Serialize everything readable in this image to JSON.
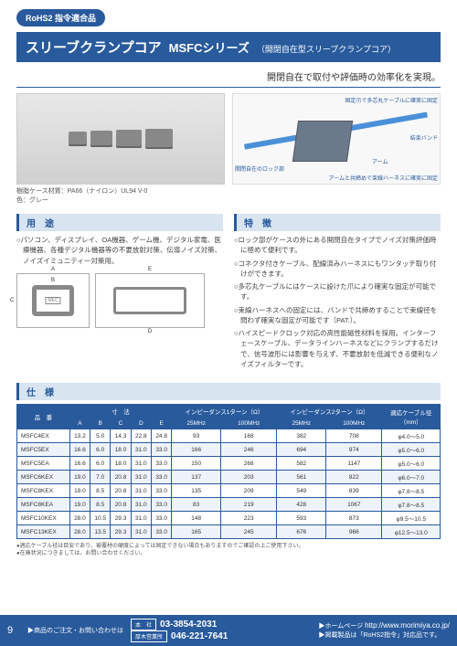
{
  "badge": "RoHS2 指令適合品",
  "title": {
    "main": "スリーブクランプコア",
    "sub": "MSFCシリーズ",
    "note": "（開閉自在型スリーブクランプコア）"
  },
  "tagline": "開閉自在で取付や評価時の効率化を実現。",
  "photoCaption": "樹脂ケース材質：PA66（ナイロン）UL94 V-0\n色：グレー",
  "iso": {
    "core": "開閉自在のロック部",
    "arm": "アーム",
    "band": "結束バンド",
    "fix1": "固定爪で多芯丸ケーブルに確実に固定",
    "fix2": "アームと共締めで束線ハーネスに確実に固定"
  },
  "use": {
    "head": "用　途",
    "text": "○パソコン、ディスプレイ、OA機器、ゲーム機、デジタル家電、医療機器、各種デジタル機器等の不要放射対策、伝導ノイズ対策、ノイズイミュニティー対策用。"
  },
  "feat": {
    "head": "特　徴",
    "items": [
      "○ロック部がケースの外にある開閉自在タイプでノイズ対策評価時に極めて便利です。",
      "○コネクタ付きケーブル、配線済みハーネスにもワンタッチ取り付けができます。",
      "○多芯丸ケーブルにはケースに設けた爪により確実な固定が可能です。",
      "○束線ハーネスへの固定には、バンドで共締めすることで束線径を問わず確実な固定が可能です（PAT.）。",
      "○ハイスピードクロック対応の高性能磁性材料を採用。インターフェースケーブル、データラインハーネスなどにクランプするだけで、信号波形には影響を与えず、不要放射を低減できる便利なノイズフィルターです。"
    ]
  },
  "dimLabels": {
    "A": "A",
    "B": "B",
    "C": "C",
    "D": "D",
    "E": "E"
  },
  "specHead": "仕　様",
  "tableHead": {
    "part": "品　番",
    "dim": "寸　法",
    "imp1": "インピーダンス1ターン（Ω）",
    "imp2": "インピーダンス2ターン（Ω）",
    "cable": "適応ケーブル径\n（mm）",
    "A": "A",
    "B": "B",
    "C": "C",
    "D": "D",
    "E": "E",
    "f25": "25MHz",
    "f100": "100MHz"
  },
  "rows": [
    {
      "p": "MSFC4EX",
      "A": "13.2",
      "B": "5.0",
      "C": "14.3",
      "D": "22.8",
      "E": "24.8",
      "i1a": "93",
      "i1b": "168",
      "i2a": "382",
      "i2b": "708",
      "cab": "φ4.0～5.0"
    },
    {
      "p": "MSFC5EX",
      "A": "16.6",
      "B": "6.0",
      "C": "18.0",
      "D": "31.0",
      "E": "33.0",
      "i1a": "166",
      "i1b": "246",
      "i2a": "694",
      "i2b": "974",
      "cab": "φ5.0～6.0"
    },
    {
      "p": "MSFC5EA",
      "A": "16.6",
      "B": "6.0",
      "C": "18.0",
      "D": "31.0",
      "E": "33.0",
      "i1a": "150",
      "i1b": "268",
      "i2a": "582",
      "i2b": "1147",
      "cab": "φ5.0～6.0"
    },
    {
      "p": "MSFC6KEX",
      "A": "19.0",
      "B": "7.0",
      "C": "20.8",
      "D": "31.0",
      "E": "33.0",
      "i1a": "137",
      "i1b": "203",
      "i2a": "561",
      "i2b": "822",
      "cab": "φ6.0～7.0"
    },
    {
      "p": "MSFC8KEX",
      "A": "19.0",
      "B": "8.5",
      "C": "20.8",
      "D": "31.0",
      "E": "33.0",
      "i1a": "135",
      "i1b": "209",
      "i2a": "549",
      "i2b": "839",
      "cab": "φ7.8～8.5"
    },
    {
      "p": "MSFC8KEA",
      "A": "19.0",
      "B": "8.5",
      "C": "20.8",
      "D": "31.0",
      "E": "33.0",
      "i1a": "83",
      "i1b": "219",
      "i2a": "428",
      "i2b": "1067",
      "cab": "φ7.8～8.5"
    },
    {
      "p": "MSFC10KEX",
      "A": "28.0",
      "B": "10.5",
      "C": "29.3",
      "D": "31.0",
      "E": "33.0",
      "i1a": "148",
      "i1b": "223",
      "i2a": "593",
      "i2b": "873",
      "cab": "φ9.5～10.5"
    },
    {
      "p": "MSFC13KEX",
      "A": "28.0",
      "B": "13.5",
      "C": "29.3",
      "D": "31.0",
      "E": "33.0",
      "i1a": "165",
      "i1b": "245",
      "i2a": "676",
      "i2b": "966",
      "cab": "φ12.5～13.0"
    }
  ],
  "notes": [
    "●適応ケーブル径は目安であり、被覆材の硬度によっては固定できない場合もありますのでご確認の上ご使用下さい。",
    "●在庫状況につきましては、お問い合わせください。"
  ],
  "footer": {
    "page": "9",
    "contact": "▶商品のご注文・お問い合わせは",
    "hq": "本　社",
    "hqPhone": "03-3854-2031",
    "branch": "厚木営業所",
    "branchPhone": "046-221-7641",
    "hp": "▶ホームページ",
    "url": "http://www.morimiya.co.jp/",
    "rohs": "▶掲載製品は「RoHS2指令」対応品です。"
  }
}
